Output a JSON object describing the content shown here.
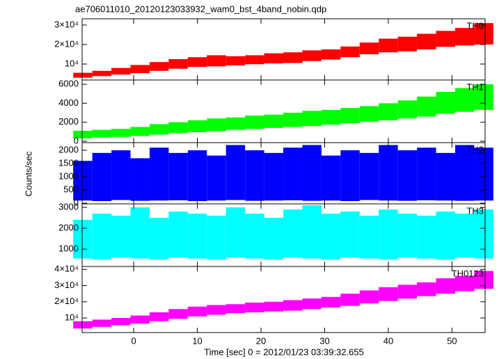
{
  "title": "ae706011010_20120123033932_wam0_bst_4band_nobin.qdp",
  "ylabel": "Counts/sec",
  "xlabel": "Time [sec] 0 = 2012/01/23 03:39:32.655",
  "chart_data": [
    {
      "type": "range",
      "name": "TH0",
      "color": "#ff0000",
      "x": [
        -8,
        -5,
        -2,
        1,
        4,
        7,
        10,
        13,
        16,
        19,
        22,
        25,
        28,
        31,
        34,
        37,
        40,
        43,
        46,
        49,
        52,
        55
      ],
      "low": [
        3000,
        3800,
        4600,
        5300,
        6500,
        7600,
        8500,
        8800,
        9300,
        9900,
        10300,
        10500,
        11500,
        12300,
        13500,
        15000,
        16000,
        16500,
        17500,
        18800,
        19500,
        20000
      ],
      "high": [
        5500,
        6500,
        8000,
        9500,
        11000,
        12500,
        13500,
        14500,
        14000,
        14500,
        15500,
        16000,
        17000,
        17500,
        19000,
        21000,
        23000,
        24000,
        25500,
        27000,
        28500,
        31000
      ],
      "xlim": [
        -8.1,
        55.2
      ],
      "xticks": [
        0,
        10,
        20,
        30,
        40,
        50
      ],
      "ylim": [
        1800,
        33200
      ],
      "yticks": [
        {
          "value": 10000,
          "label": "10⁴"
        },
        {
          "value": 20000,
          "label": "2×10⁴"
        },
        {
          "value": 30000,
          "label": "3×10⁴"
        }
      ]
    },
    {
      "type": "range",
      "name": "TH1",
      "color": "#00ff00",
      "x": [
        -8,
        -5,
        -2,
        1,
        4,
        7,
        10,
        13,
        16,
        19,
        22,
        25,
        28,
        31,
        34,
        37,
        40,
        43,
        46,
        49,
        52,
        55
      ],
      "low": [
        300,
        400,
        450,
        550,
        700,
        850,
        950,
        1050,
        1200,
        1300,
        1400,
        1500,
        1600,
        1750,
        1900,
        2050,
        2200,
        2400,
        2600,
        2900,
        3100,
        3300
      ],
      "high": [
        1100,
        1200,
        1300,
        1500,
        1800,
        2000,
        2200,
        2400,
        2500,
        2700,
        2800,
        3000,
        3200,
        3300,
        3500,
        3700,
        4000,
        4300,
        4700,
        5200,
        5600,
        6000
      ],
      "xlim": [
        -8.1,
        55.2
      ],
      "xticks": [
        0,
        10,
        20,
        30,
        40,
        50
      ],
      "ylim": [
        -150,
        6450
      ],
      "yticks": [
        0,
        2000,
        4000,
        6000
      ]
    },
    {
      "type": "range",
      "name": "TH2",
      "color": "#0000ff",
      "x": [
        -8,
        -5,
        -2,
        1,
        4,
        7,
        10,
        13,
        16,
        19,
        22,
        25,
        28,
        31,
        34,
        37,
        40,
        43,
        46,
        49,
        52,
        55
      ],
      "low": [
        100,
        80,
        120,
        90,
        100,
        110,
        80,
        100,
        120,
        90,
        100,
        110,
        90,
        100,
        80,
        120,
        100,
        90,
        110,
        100,
        90,
        100
      ],
      "high": [
        1600,
        1900,
        2000,
        1700,
        2100,
        1900,
        2000,
        1800,
        2200,
        2000,
        1900,
        2100,
        2200,
        1800,
        2000,
        1900,
        2200,
        2000,
        2100,
        1900,
        2200,
        2100
      ],
      "xlim": [
        -8.1,
        55.2
      ],
      "xticks": [
        0,
        10,
        20,
        30,
        40,
        50
      ],
      "ylim": [
        -25,
        2290
      ],
      "yticks": [
        0,
        500,
        1000,
        1500,
        2000
      ]
    },
    {
      "type": "range",
      "name": "TH3",
      "color": "#00ffff",
      "x": [
        -8,
        -5,
        -2,
        1,
        4,
        7,
        10,
        13,
        16,
        19,
        22,
        25,
        28,
        31,
        34,
        37,
        40,
        43,
        46,
        49,
        52,
        55
      ],
      "low": [
        550,
        500,
        600,
        550,
        500,
        600,
        550,
        500,
        600,
        550,
        500,
        600,
        550,
        500,
        600,
        550,
        500,
        600,
        550,
        500,
        600,
        550
      ],
      "high": [
        2400,
        2700,
        2600,
        3000,
        2500,
        2800,
        2700,
        2600,
        3000,
        2700,
        2500,
        2900,
        3100,
        2700,
        2800,
        2600,
        2900,
        2700,
        2600,
        2800,
        2700,
        2900
      ],
      "xlim": [
        -8.1,
        55.2
      ],
      "xticks": [
        0,
        10,
        20,
        30,
        40,
        50
      ],
      "ylim": [
        170,
        3170
      ],
      "yticks": [
        1000,
        2000,
        3000
      ]
    },
    {
      "type": "range",
      "name": "TH0123",
      "color": "#ff00ff",
      "x": [
        -8,
        -5,
        -2,
        1,
        4,
        7,
        10,
        13,
        16,
        19,
        22,
        25,
        28,
        31,
        34,
        37,
        40,
        43,
        46,
        49,
        52,
        55
      ],
      "low": [
        3500,
        4500,
        5500,
        6500,
        8000,
        9500,
        11000,
        12000,
        13000,
        13500,
        14000,
        14500,
        15500,
        16500,
        17500,
        19000,
        20500,
        22000,
        23500,
        25000,
        26500,
        28000
      ],
      "high": [
        8000,
        9000,
        10000,
        11500,
        13500,
        15500,
        17000,
        18000,
        18500,
        19500,
        20000,
        21000,
        22000,
        23000,
        25000,
        27000,
        29000,
        30500,
        32000,
        34500,
        36000,
        39000
      ],
      "xlim": [
        -8.1,
        55.2
      ],
      "xticks": [
        0,
        10,
        20,
        30,
        40,
        50
      ],
      "ylim": [
        1000,
        41800
      ],
      "yticks": [
        {
          "value": 10000,
          "label": "10⁴"
        },
        {
          "value": 20000,
          "label": "2×10⁴"
        },
        {
          "value": 30000,
          "label": "3×10⁴"
        },
        {
          "value": 40000,
          "label": "4×10⁴"
        }
      ]
    }
  ]
}
